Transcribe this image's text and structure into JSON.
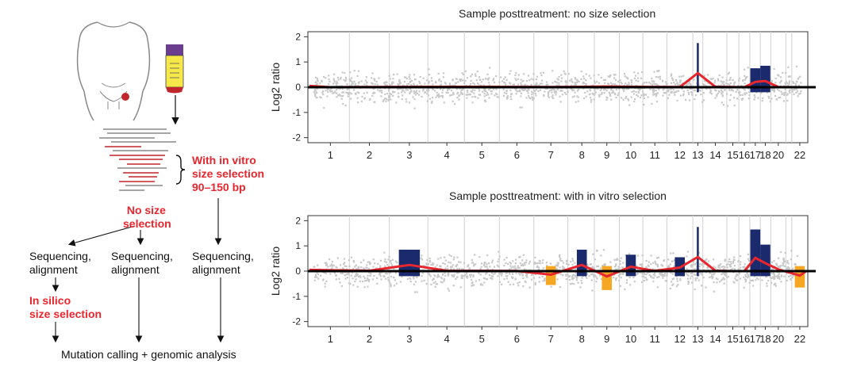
{
  "workflow": {
    "with_in_vitro": [
      "With in vitro",
      "size selection",
      "90–150 bp"
    ],
    "no_size_selection": [
      "No size",
      "selection"
    ],
    "seq_align": [
      "Sequencing,",
      "alignment"
    ],
    "in_silico": [
      "In silico",
      "size selection"
    ],
    "mutation_calling": "Mutation calling + genomic analysis"
  },
  "colors": {
    "accent_red": "#e8262d",
    "scatter_gray": "#c8c8c8",
    "gain_blue": "#1a2a6c",
    "loss_orange": "#f5a623",
    "tube_cap": "#6a3d8f",
    "tube_fill": "#f7e84a"
  },
  "chart_data": [
    {
      "type": "scatter",
      "title": "Sample posttreatment: no size selection",
      "ylabel": "Log2 ratio",
      "ylim": [
        -2.2,
        2.2
      ],
      "yticks": [
        -2,
        -1,
        0,
        1,
        2
      ],
      "x_categories": [
        "1",
        "2",
        "3",
        "4",
        "5",
        "6",
        "7",
        "8",
        "9",
        "10",
        "11",
        "12",
        "13",
        "14",
        "15",
        "16",
        "17",
        "18",
        "20",
        "22"
      ],
      "segments_approx_log2": [
        0,
        0.02,
        0.03,
        0.05,
        0.04,
        0.03,
        0.02,
        0.05,
        0.08,
        0.04,
        0.03,
        0.02,
        1.6,
        0.05,
        0.02,
        0.0,
        0.6,
        0.7,
        0.02,
        0.0
      ]
    },
    {
      "type": "scatter",
      "title": "Sample posttreatment: with in vitro selection",
      "ylabel": "Log2 ratio",
      "ylim": [
        -2.2,
        2.2
      ],
      "yticks": [
        -2,
        -1,
        0,
        1,
        2
      ],
      "x_categories": [
        "1",
        "2",
        "3",
        "4",
        "5",
        "6",
        "7",
        "8",
        "9",
        "10",
        "11",
        "12",
        "13",
        "14",
        "15",
        "16",
        "17",
        "18",
        "20",
        "22"
      ],
      "segments_approx_log2": [
        0.1,
        0.05,
        0.7,
        0.05,
        0.03,
        0.02,
        -0.4,
        0.7,
        -0.6,
        0.5,
        0.03,
        0.4,
        1.6,
        0.05,
        0.0,
        0.0,
        1.5,
        0.9,
        0.2,
        -0.5
      ]
    }
  ]
}
